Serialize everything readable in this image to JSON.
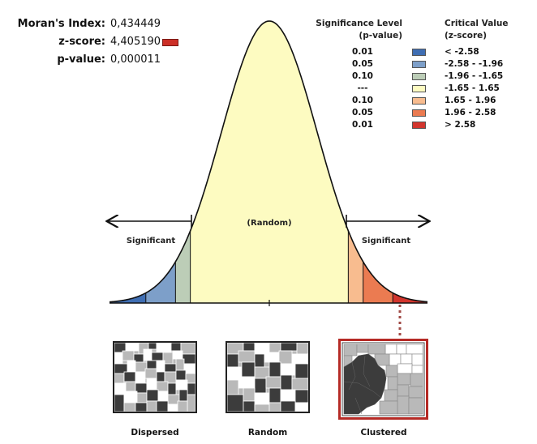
{
  "stats": {
    "morans_index_label": "Moran's Index:",
    "morans_index_value": "0,434449",
    "z_score_label": "z-score:",
    "z_score_value": "4,405190",
    "p_value_label": "p-value:",
    "p_value_value": "0,000011",
    "z_score_color": "#cc2f27"
  },
  "legend": {
    "significance_header_line1": "Significance Level",
    "significance_header_line2": "(p-value)",
    "critical_header_line1": "Critical Value",
    "critical_header_line2": "(z-score)",
    "rows": [
      {
        "p": "0.01",
        "color": "#3f6eb3",
        "range": "< -2.58"
      },
      {
        "p": "0.05",
        "color": "#7d9fc9",
        "range": "-2.58 - -1.96"
      },
      {
        "p": "0.10",
        "color": "#bccdb7",
        "range": "-1.96 - -1.65"
      },
      {
        "p": "---",
        "color": "#fdfbc1",
        "range": "-1.65 - 1.65"
      },
      {
        "p": "0.10",
        "color": "#f8bc8f",
        "range": "1.65 - 1.96"
      },
      {
        "p": "0.05",
        "color": "#eb7b51",
        "range": "1.96 - 2.58"
      },
      {
        "p": "0.01",
        "color": "#d2352d",
        "range": "> 2.58"
      }
    ]
  },
  "diagram": {
    "random_label": "(Random)",
    "significant_left": "Significant",
    "significant_right": "Significant"
  },
  "maps": {
    "dispersed": "Dispersed",
    "random": "Random",
    "clustered": "Clustered",
    "highlight_color": "#b52a25"
  }
}
